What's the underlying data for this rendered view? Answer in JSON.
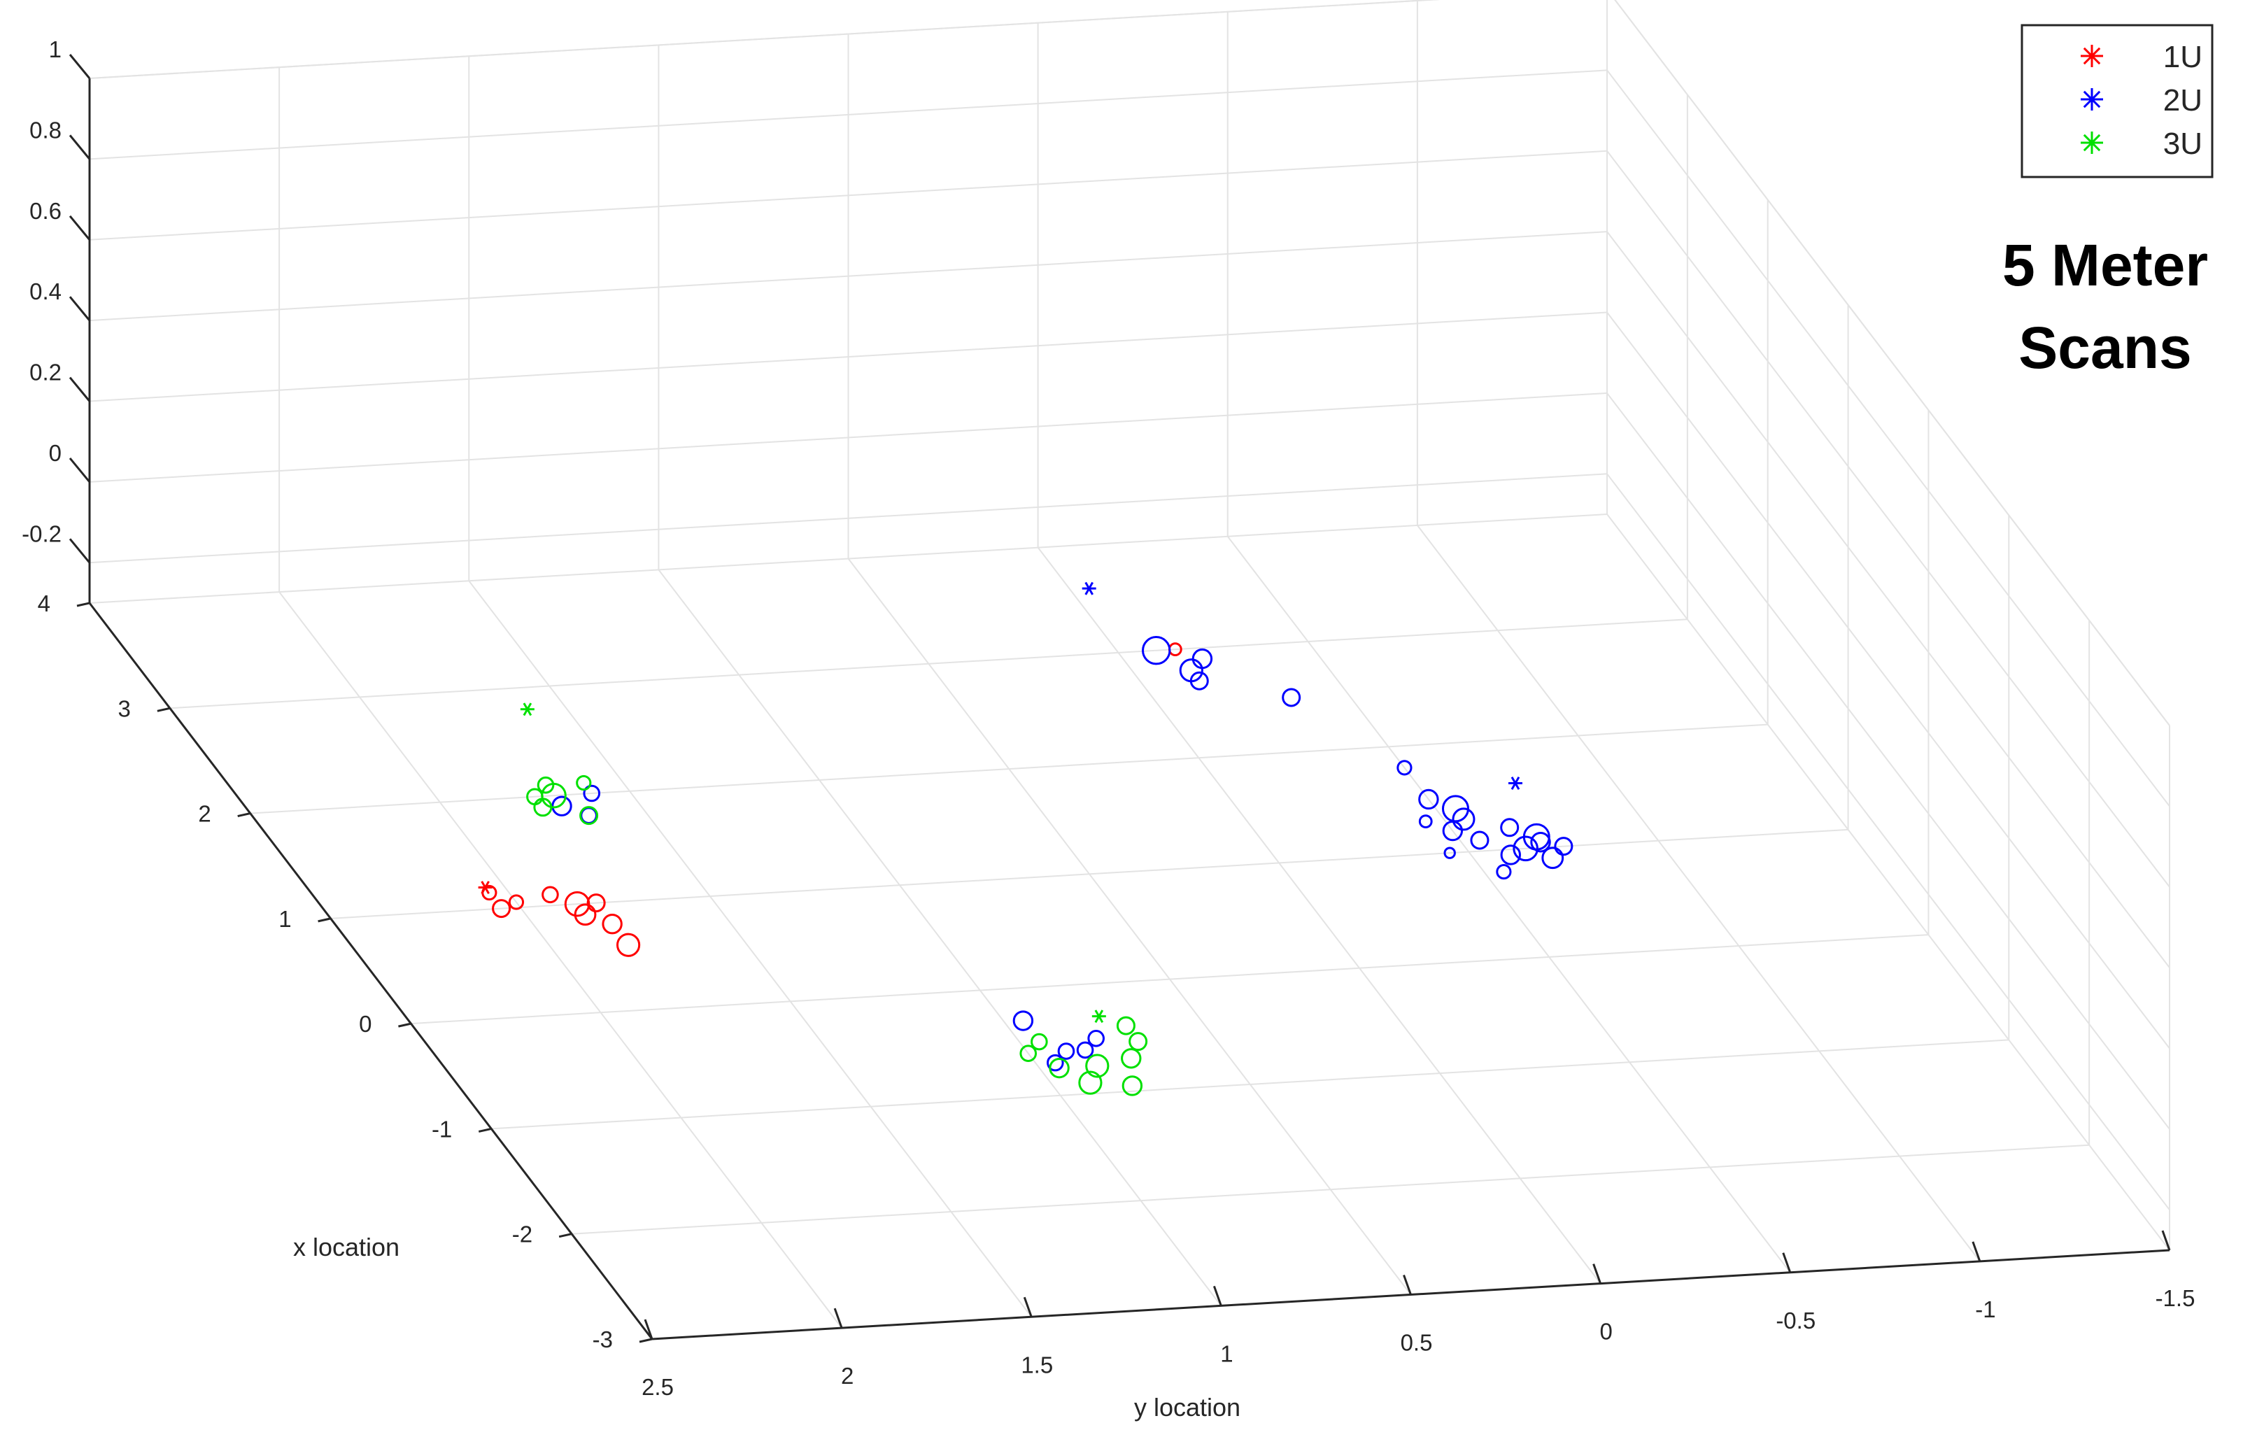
{
  "chart_data": {
    "type": "scatter",
    "projection": "3d",
    "title": "",
    "xlabel": "x location",
    "ylabel": "y location",
    "zlabel": "",
    "xlim": [
      -3,
      4
    ],
    "ylim": [
      -1.5,
      2.5
    ],
    "zlim": [
      -0.3,
      1
    ],
    "x_ticks": [
      "4",
      "3",
      "2",
      "1",
      "0",
      "-1",
      "-2",
      "-3"
    ],
    "y_ticks": [
      "2.5",
      "2",
      "1.5",
      "1",
      "0.5",
      "0",
      "-0.5",
      "-1",
      "-1.5"
    ],
    "z_ticks": [
      "1",
      "0.8",
      "0.6",
      "0.4",
      "0.2",
      "0",
      "-0.2"
    ],
    "grid": true,
    "legend_position": "top-right",
    "annotation": [
      "5 Meter",
      "Scans"
    ],
    "series": [
      {
        "name": "1U",
        "color": "#ff0000",
        "stars": [
          [
            1.2,
            2.05
          ]
        ],
        "circles": [
          [
            3.0,
            -0.15,
            0.14
          ],
          [
            1.15,
            2.05,
            0.16
          ],
          [
            1.0,
            2.05,
            0.2
          ],
          [
            1.1,
            1.9,
            0.18
          ],
          [
            1.0,
            1.85,
            0.28
          ],
          [
            0.9,
            1.85,
            0.24
          ],
          [
            0.8,
            1.8,
            0.22
          ],
          [
            1.05,
            2.0,
            0.16
          ],
          [
            1.0,
            1.8,
            0.2
          ],
          [
            0.6,
            1.8,
            0.26
          ]
        ]
      },
      {
        "name": "2U",
        "color": "#0000ff",
        "stars": [
          [
            3.6,
            -0.05
          ],
          [
            1.6,
            -0.75
          ]
        ],
        "circles": [
          [
            3.0,
            -0.1,
            0.32
          ],
          [
            2.8,
            -0.15,
            0.26
          ],
          [
            2.9,
            -0.2,
            0.22
          ],
          [
            2.7,
            -0.15,
            0.2
          ],
          [
            2.5,
            -0.35,
            0.2
          ],
          [
            1.8,
            -0.5,
            0.16
          ],
          [
            1.5,
            -0.5,
            0.22
          ],
          [
            1.3,
            -0.45,
            0.14
          ],
          [
            1.0,
            -0.45,
            0.12
          ],
          [
            1.4,
            -0.55,
            0.3
          ],
          [
            1.3,
            -0.55,
            0.25
          ],
          [
            1.2,
            -0.5,
            0.22
          ],
          [
            1.1,
            -0.55,
            0.2
          ],
          [
            1.1,
            -0.7,
            0.3
          ],
          [
            1.0,
            -0.65,
            0.28
          ],
          [
            0.9,
            -0.7,
            0.24
          ],
          [
            0.95,
            -0.6,
            0.22
          ],
          [
            1.05,
            -0.7,
            0.22
          ],
          [
            1.0,
            -0.75,
            0.2
          ],
          [
            1.2,
            -0.65,
            0.2
          ],
          [
            0.8,
            -0.55,
            0.16
          ],
          [
            2.0,
            1.6,
            0.18
          ],
          [
            1.9,
            1.7,
            0.22
          ],
          [
            1.8,
            1.65,
            0.18
          ],
          [
            -0.3,
            0.95,
            0.22
          ],
          [
            -0.6,
            0.9,
            0.18
          ],
          [
            -0.7,
            0.95,
            0.18
          ],
          [
            -0.6,
            0.85,
            0.18
          ],
          [
            -0.5,
            0.8,
            0.18
          ]
        ]
      },
      {
        "name": "3U",
        "color": "#00e000",
        "stars": [
          [
            2.8,
            1.6
          ],
          [
            -0.3,
            0.75
          ]
        ],
        "circles": [
          [
            2.1,
            1.6,
            0.16
          ],
          [
            2.1,
            1.7,
            0.18
          ],
          [
            2.0,
            1.75,
            0.18
          ],
          [
            2.0,
            1.7,
            0.28
          ],
          [
            1.9,
            1.75,
            0.2
          ],
          [
            1.8,
            1.65,
            0.2
          ],
          [
            -0.5,
            0.95,
            0.18
          ],
          [
            -0.6,
            1.0,
            0.18
          ],
          [
            -0.75,
            0.85,
            0.26
          ],
          [
            -0.7,
            0.75,
            0.22
          ],
          [
            -0.75,
            0.95,
            0.22
          ],
          [
            -0.55,
            0.7,
            0.2
          ],
          [
            -0.4,
            0.7,
            0.2
          ],
          [
            -0.9,
            0.9,
            0.26
          ],
          [
            -0.95,
            0.8,
            0.22
          ]
        ]
      }
    ]
  }
}
